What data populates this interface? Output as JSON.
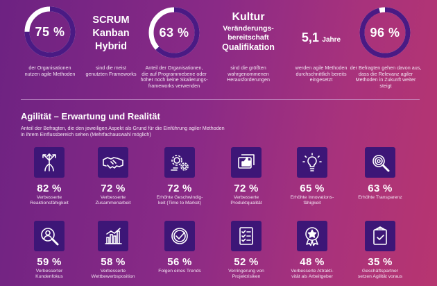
{
  "colors": {
    "donut_ring": "#4a1a84",
    "donut_track": "#ffffff",
    "icon_box": "#3d1677"
  },
  "top_stats": [
    {
      "value": 75,
      "value_label": "75 %",
      "text_lines": [
        "der Organisationen",
        "nutzen agile Methoden"
      ]
    },
    {
      "value": 63,
      "value_label": "63 %",
      "text_lines": [
        "Anteil der Organisationen,",
        "die auf Programmebene oder",
        "höher noch keine Skalierungs-",
        "frameworks verwenden"
      ]
    },
    {
      "value": 96,
      "value_label": "96 %",
      "text_lines": [
        "der Befragten gehen davon aus,",
        "dass die Relevanz agiler",
        "Methoden in Zukunft weiter",
        "steigt"
      ]
    }
  ],
  "frameworks": {
    "words": [
      "SCRUM",
      "Kanban",
      "Hybrid"
    ],
    "text_lines": [
      "sind die meist",
      "genutzten Frameworks"
    ]
  },
  "culture": {
    "words": [
      "Kultur",
      "Veränderungs-",
      "bereitschaft",
      "Qualifikation"
    ],
    "text_lines": [
      "sind die größten",
      "wahrgenommenen",
      "Herausforderungen"
    ]
  },
  "years": {
    "value": "5,1",
    "unit": "Jahre",
    "text_lines": [
      "werden agile Methoden",
      "durchschnittlich bereits",
      "eingesetzt"
    ]
  },
  "section": {
    "title": "Agilität – Erwartung und Realität",
    "subtitle": "Anteil der Befragten, die den jeweiligen Aspekt als Grund für die Einführung agiler Methoden in ihrem Einflussbereich sehen (Mehrfachauswahl möglich)"
  },
  "chart_data": {
    "type": "table",
    "title": "Agilität – Erwartung und Realität",
    "items": [
      {
        "value": 82,
        "value_label": "82 %",
        "label_lines": [
          "Verbesserte",
          "Reaktionsfähigkeit"
        ],
        "icon": "arrows-icon"
      },
      {
        "value": 72,
        "value_label": "72 %",
        "label_lines": [
          "Verbesserte",
          "Zusammenarbeit"
        ],
        "icon": "handshake-icon"
      },
      {
        "value": 72,
        "value_label": "72 %",
        "label_lines": [
          "Erhöhte Geschwindig-",
          "keit (Time to Market)"
        ],
        "icon": "gears-icon"
      },
      {
        "value": 72,
        "value_label": "72 %",
        "label_lines": [
          "Verbesserte",
          "Produktqualität"
        ],
        "icon": "thumbs-up-icon"
      },
      {
        "value": 65,
        "value_label": "65 %",
        "label_lines": [
          "Erhöhte Innovations-",
          "fähigkeit"
        ],
        "icon": "lightbulb-icon"
      },
      {
        "value": 63,
        "value_label": "63 %",
        "label_lines": [
          "Erhöhte Transparenz"
        ],
        "icon": "magnifier-icon"
      },
      {
        "value": 59,
        "value_label": "59 %",
        "label_lines": [
          "Verbesserter",
          "Kundenfokus"
        ],
        "icon": "user-focus-icon"
      },
      {
        "value": 58,
        "value_label": "58 %",
        "label_lines": [
          "Verbesserte",
          "Wettbewerbsposition"
        ],
        "icon": "bar-chart-icon"
      },
      {
        "value": 56,
        "value_label": "56 %",
        "label_lines": [
          "Folgen eines Trends"
        ],
        "icon": "check-circle-icon"
      },
      {
        "value": 52,
        "value_label": "52 %",
        "label_lines": [
          "Verringerung von",
          "Projektrisiken"
        ],
        "icon": "checklist-icon"
      },
      {
        "value": 48,
        "value_label": "48 %",
        "label_lines": [
          "Verbesserte Attrakti-",
          "vität als Arbeitgeber"
        ],
        "icon": "award-icon"
      },
      {
        "value": 35,
        "value_label": "35 %",
        "label_lines": [
          "Geschäftspartner",
          "setzen Agilität voraus"
        ],
        "icon": "clipboard-check-icon"
      }
    ]
  }
}
